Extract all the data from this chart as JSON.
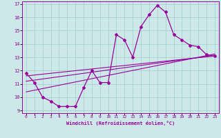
{
  "xlabel": "Windchill (Refroidissement éolien,°C)",
  "bg_color": "#cce8e8",
  "line_color": "#990099",
  "xlim": [
    -0.5,
    23.5
  ],
  "ylim": [
    8.8,
    17.2
  ],
  "xticks": [
    0,
    1,
    2,
    3,
    4,
    5,
    6,
    7,
    8,
    9,
    10,
    11,
    12,
    13,
    14,
    15,
    16,
    17,
    18,
    19,
    20,
    21,
    22,
    23
  ],
  "yticks": [
    9,
    10,
    11,
    12,
    13,
    14,
    15,
    16,
    17
  ],
  "main_x": [
    0,
    1,
    2,
    3,
    4,
    5,
    6,
    7,
    8,
    9,
    10,
    11,
    12,
    13,
    14,
    15,
    16,
    17,
    18,
    19,
    20,
    21,
    22,
    23
  ],
  "main_y": [
    11.8,
    11.1,
    10.0,
    9.7,
    9.3,
    9.3,
    9.3,
    10.7,
    12.0,
    11.1,
    11.1,
    14.7,
    14.3,
    13.0,
    15.3,
    16.2,
    16.9,
    16.4,
    14.7,
    14.3,
    13.9,
    13.8,
    13.2,
    13.1
  ],
  "line2_x": [
    0,
    23
  ],
  "line2_y": [
    11.2,
    13.15
  ],
  "line3_x": [
    0,
    23
  ],
  "line3_y": [
    11.6,
    13.1
  ],
  "line4_x": [
    0,
    23
  ],
  "line4_y": [
    10.4,
    13.25
  ]
}
